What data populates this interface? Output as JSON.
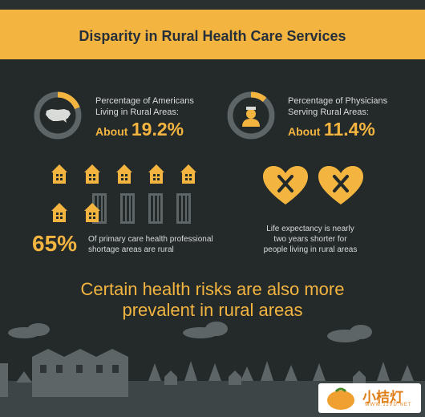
{
  "banner": {
    "title": "Disparity in Rural Health Care Services"
  },
  "stat_rural": {
    "label_line1": "Percentage of Americans",
    "label_line2": "Living in Rural Areas:",
    "about": "About",
    "value": "19.2%",
    "fraction": 0.192,
    "icon": "us-map-icon"
  },
  "stat_physicians": {
    "label_line1": "Percentage of Physicians",
    "label_line2": "Serving Rural Areas:",
    "about": "About",
    "value": "11.4%",
    "fraction": 0.114,
    "icon": "doctor-icon"
  },
  "shortage": {
    "value": "65%",
    "text_line1": "Of primary care health professional",
    "text_line2": "shortage areas are rural"
  },
  "life_expectancy": {
    "line1": "Life expectancy is nearly",
    "line2": "two years shorter for",
    "line3": "people living in rural areas",
    "icon": "x-heart-icon"
  },
  "headline": {
    "line1": "Certain health risks are also more",
    "line2": "prevalent in rural areas"
  },
  "watermark": {
    "name": "小桔灯",
    "url": "WWW.11VD.NET"
  },
  "colors": {
    "accent": "#f3b540",
    "background": "#24292a",
    "muted": "#5d6566"
  }
}
